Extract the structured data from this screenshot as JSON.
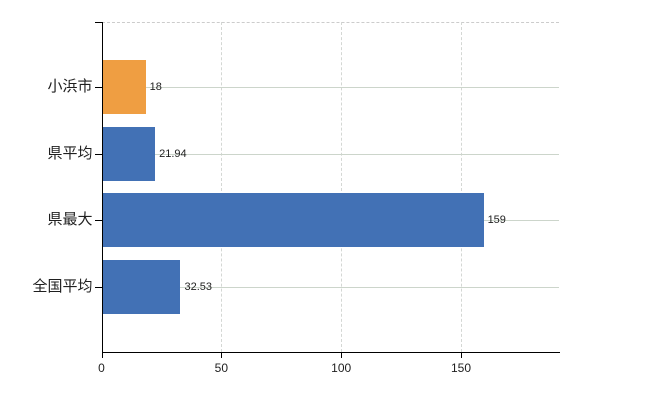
{
  "chart_data": {
    "type": "bar",
    "orientation": "horizontal",
    "title": "",
    "categories": [
      "小浜市",
      "県平均",
      "県最大",
      "全国平均"
    ],
    "values": [
      18,
      21.94,
      159,
      32.53
    ],
    "value_labels": [
      "18",
      "21.94",
      "159",
      "32.53"
    ],
    "bar_colors": [
      "#EF9E42",
      "#4271B5",
      "#4271B5",
      "#4271B5"
    ],
    "xtick_labels": [
      "0",
      "50",
      "100",
      "150"
    ],
    "xtick_values": [
      0,
      50,
      100,
      150
    ],
    "xlim": [
      0,
      190.9
    ],
    "grid": true,
    "legend": false,
    "colors": {
      "bar_orange": "#EF9E42",
      "bar_blue": "#4271B5",
      "axis": "#000000",
      "grid_horizontal": "#ccd5cb",
      "grid_vertical": "#d4d7d4",
      "top_border": "#cccccc",
      "text": "#1f1f1f",
      "background": "#ffffff"
    }
  }
}
